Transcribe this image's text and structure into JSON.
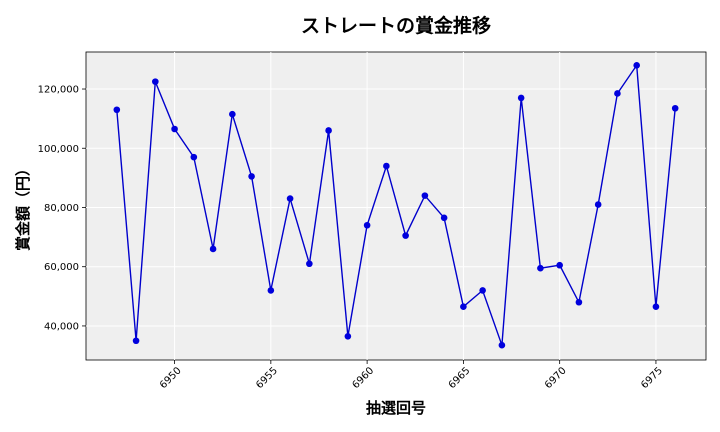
{
  "chart_data": {
    "type": "line",
    "title": "ストレートの賞金推移",
    "xlabel": "抽選回号",
    "ylabel": "賞金額（円）",
    "xlim": [
      6945.4,
      6977.6
    ],
    "ylim": [
      28500,
      132500
    ],
    "xticks": [
      6950,
      6955,
      6960,
      6965,
      6970,
      6975
    ],
    "yticks": [
      40000,
      60000,
      80000,
      100000,
      120000
    ],
    "ytick_labels": [
      "40,000",
      "60,000",
      "80,000",
      "100,000",
      "120,000"
    ],
    "grid": true,
    "color": "#0000cc",
    "marker_color": "#0000dd",
    "background": "#efefef",
    "x": [
      6947,
      6948,
      6949,
      6950,
      6951,
      6952,
      6953,
      6954,
      6955,
      6956,
      6957,
      6958,
      6959,
      6960,
      6961,
      6962,
      6963,
      6964,
      6965,
      6966,
      6967,
      6968,
      6969,
      6970,
      6971,
      6972,
      6973,
      6974,
      6975,
      6976
    ],
    "values": [
      113000,
      35000,
      122500,
      106500,
      97000,
      66000,
      111500,
      90500,
      52000,
      83000,
      61000,
      106000,
      36500,
      74000,
      94000,
      70500,
      84000,
      76500,
      46500,
      52000,
      33500,
      117000,
      59500,
      60500,
      48000,
      81000,
      118500,
      128000,
      46500,
      113500
    ]
  }
}
